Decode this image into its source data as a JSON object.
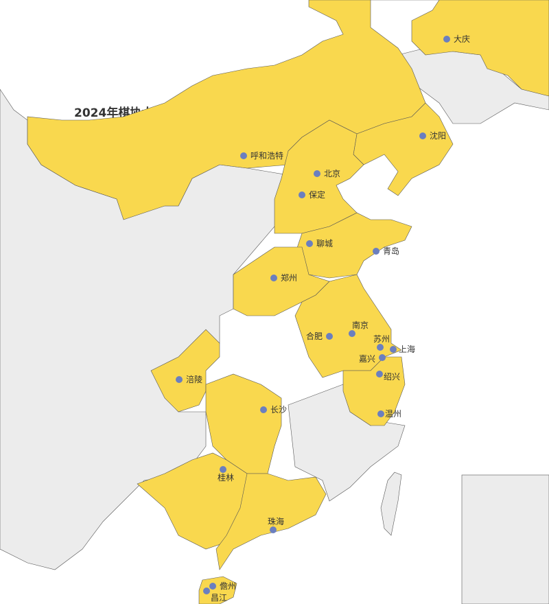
{
  "title": "2024年棋协大师分站赛",
  "colors": {
    "highlight": "#f9d84e",
    "base": "#ececec",
    "border": "#555555",
    "sea": "#ffffff",
    "dot": "#6b7fbf"
  },
  "cities": [
    {
      "name": "大庆"
    },
    {
      "name": "沈阳"
    },
    {
      "name": "呼和浩特"
    },
    {
      "name": "北京"
    },
    {
      "name": "保定"
    },
    {
      "name": "聊城"
    },
    {
      "name": "青岛"
    },
    {
      "name": "郑州"
    },
    {
      "name": "南京"
    },
    {
      "name": "合肥"
    },
    {
      "name": "苏州"
    },
    {
      "name": "上海"
    },
    {
      "name": "嘉兴"
    },
    {
      "name": "绍兴"
    },
    {
      "name": "温州"
    },
    {
      "name": "涪陵"
    },
    {
      "name": "长沙"
    },
    {
      "name": "桂林"
    },
    {
      "name": "珠海"
    },
    {
      "name": "儋州"
    },
    {
      "name": "昌江"
    }
  ]
}
